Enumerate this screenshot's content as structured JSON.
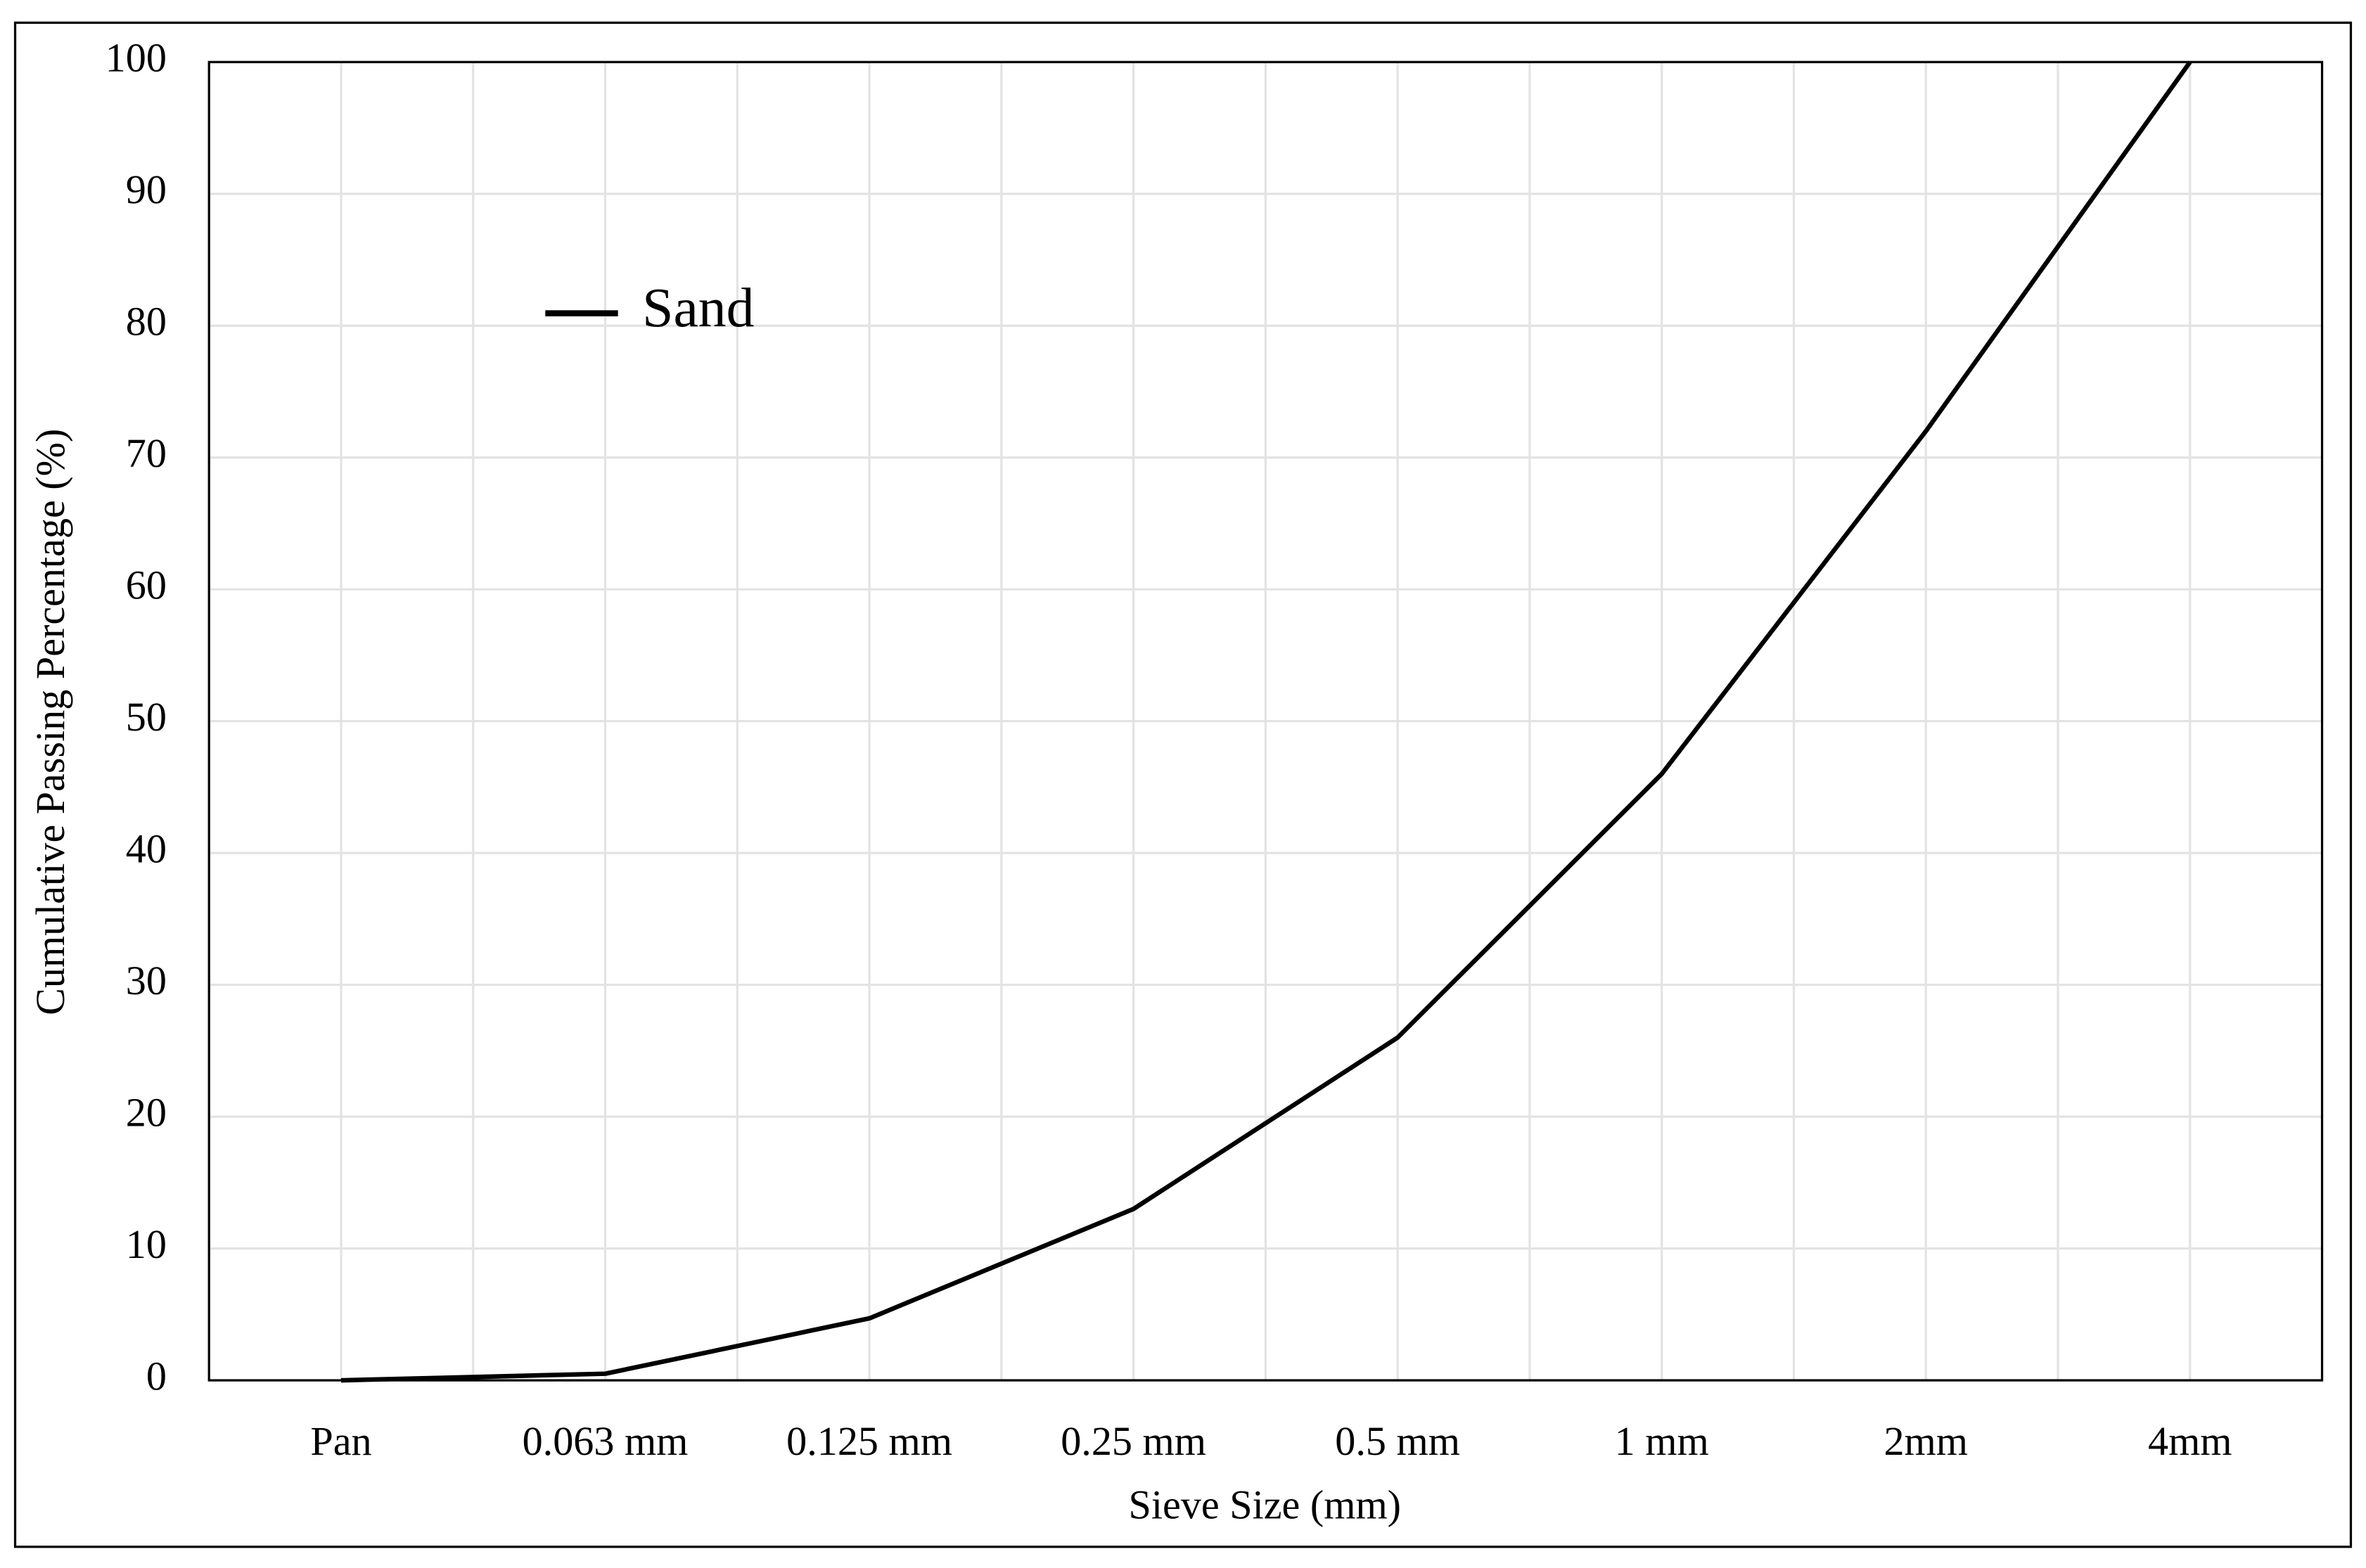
{
  "chart_data": {
    "type": "line",
    "x_label": "Sieve Size (mm)",
    "y_label": "Cumulative Passing Percentage (%)",
    "categories": [
      "Pan",
      "0.063 mm",
      "0.125 mm",
      "0.25 mm",
      "0.5 mm",
      "1 mm",
      "2mm",
      "4mm"
    ],
    "series": [
      {
        "name": "Sand",
        "color": "#000000",
        "values": [
          0,
          0.5,
          4.7,
          13,
          26,
          46,
          72,
          100
        ]
      }
    ],
    "ylim": [
      0,
      100
    ],
    "yticks": [
      0,
      10,
      20,
      30,
      40,
      50,
      60,
      70,
      80,
      90,
      100
    ],
    "grid": true,
    "legend": "upper left"
  }
}
